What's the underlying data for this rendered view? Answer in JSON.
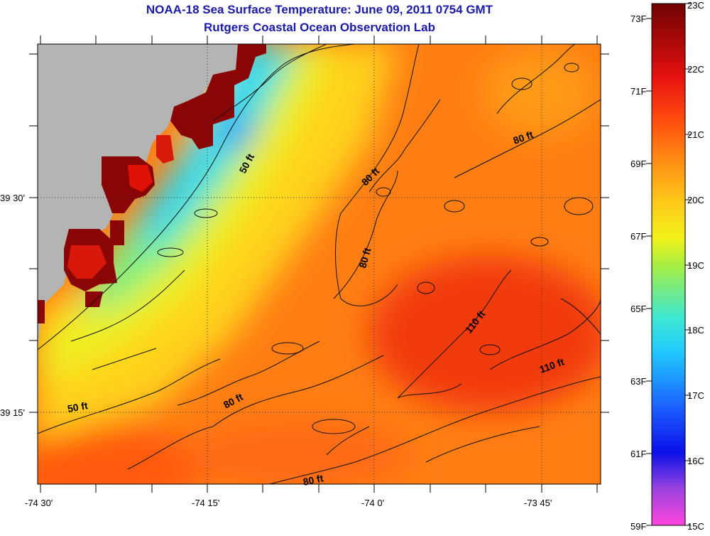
{
  "header": {
    "title": "NOAA-18 Sea Surface Temperature:  June 09, 2011 0754 GMT",
    "subtitle": "Rutgers Coastal Ocean Observation Lab"
  },
  "axes": {
    "lat_labels": [
      "39 30'",
      "39 15'"
    ],
    "lon_labels": [
      "-74 30'",
      "-74 15'",
      "-74 0'",
      "-73 45'"
    ]
  },
  "contours": {
    "labels": [
      "50 ft",
      "80 ft",
      "80 ft",
      "80 ft",
      "80 ft",
      "110 ft",
      "110 ft",
      "50 ft",
      "80 ft"
    ]
  },
  "colorbar": {
    "fahrenheit": [
      "73F",
      "71F",
      "69F",
      "67F",
      "65F",
      "63F",
      "61F",
      "59F"
    ],
    "celsius": [
      "23C",
      "22C",
      "21C",
      "20C",
      "19C",
      "18C",
      "17C",
      "16C",
      "15C"
    ],
    "colors": [
      "#ff44dd",
      "#9a44e0",
      "#0a10e8",
      "#1a5aff",
      "#20c8ff",
      "#3fe8d0",
      "#a8ee40",
      "#f2f21c",
      "#ffc81a",
      "#ff8c14",
      "#ff4a0e",
      "#e61010",
      "#a00808",
      "#700404"
    ]
  },
  "colors": {
    "land": "#b4b4b4",
    "title": "#1a1aa8",
    "nearshore_warm": "#8a0606"
  }
}
